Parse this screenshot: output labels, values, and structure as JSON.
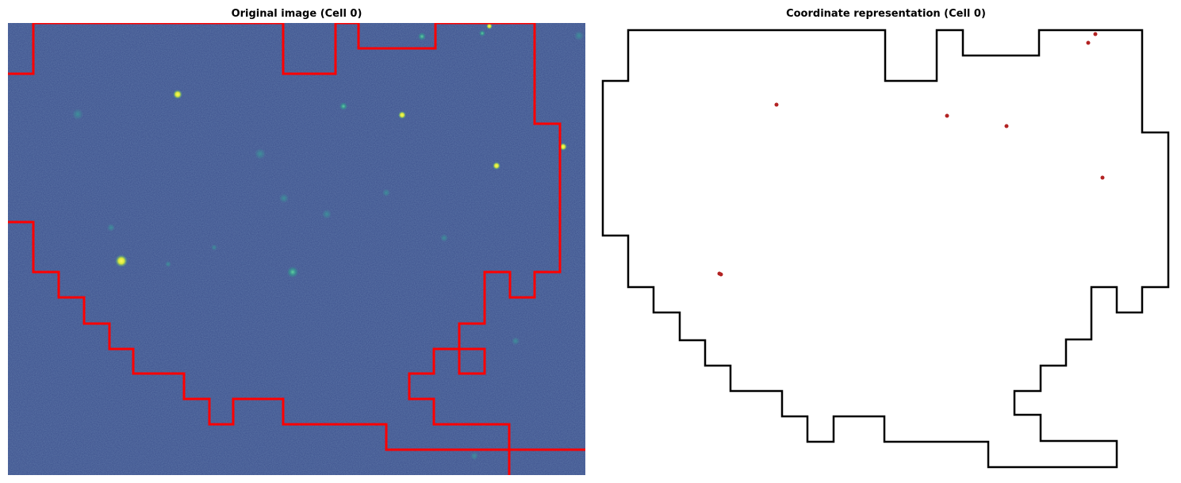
{
  "left_panel": {
    "title": "Original image (Cell 0)",
    "colors": {
      "background": "#3b4f8c",
      "boundary": "#ff0000",
      "spot_bright": "#f5f53a",
      "spot_mid": "#3fbf9a"
    }
  },
  "right_panel": {
    "title": "Coordinate representation (Cell 0)",
    "colors": {
      "boundary": "#000000",
      "points": "#b22222"
    }
  }
}
